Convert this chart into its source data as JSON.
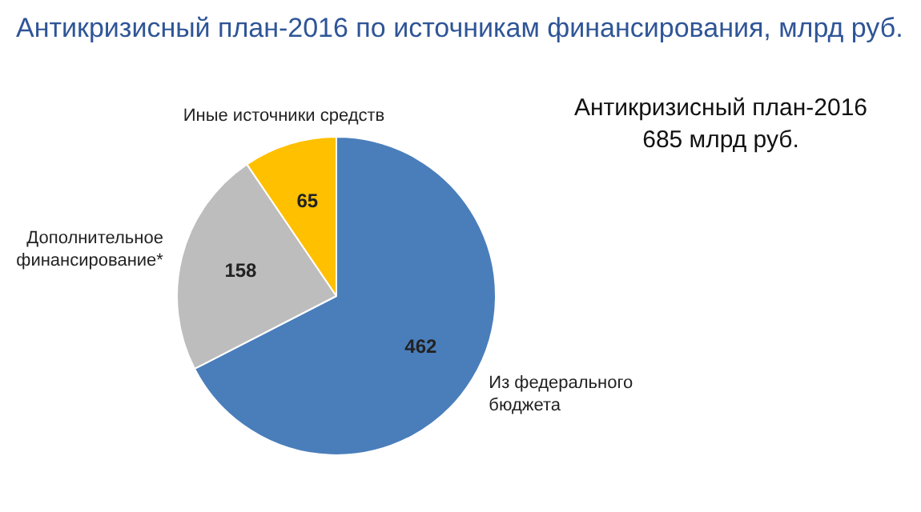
{
  "chart_data": {
    "type": "pie",
    "title": "Антикризисный план-2016 по источникам финансирования, млрд руб.",
    "categories": [
      "Из федерального\nбюджета",
      "Дополнительное\nфинансирование*",
      "Иные источники средств"
    ],
    "values": [
      462,
      158,
      65
    ],
    "colors": [
      "#4a7ebb",
      "#bdbdbd",
      "#ffc000"
    ],
    "data_labels": true,
    "legend": false,
    "annotations": [
      "Антикризисный план-2016\n685 млрд руб."
    ]
  }
}
